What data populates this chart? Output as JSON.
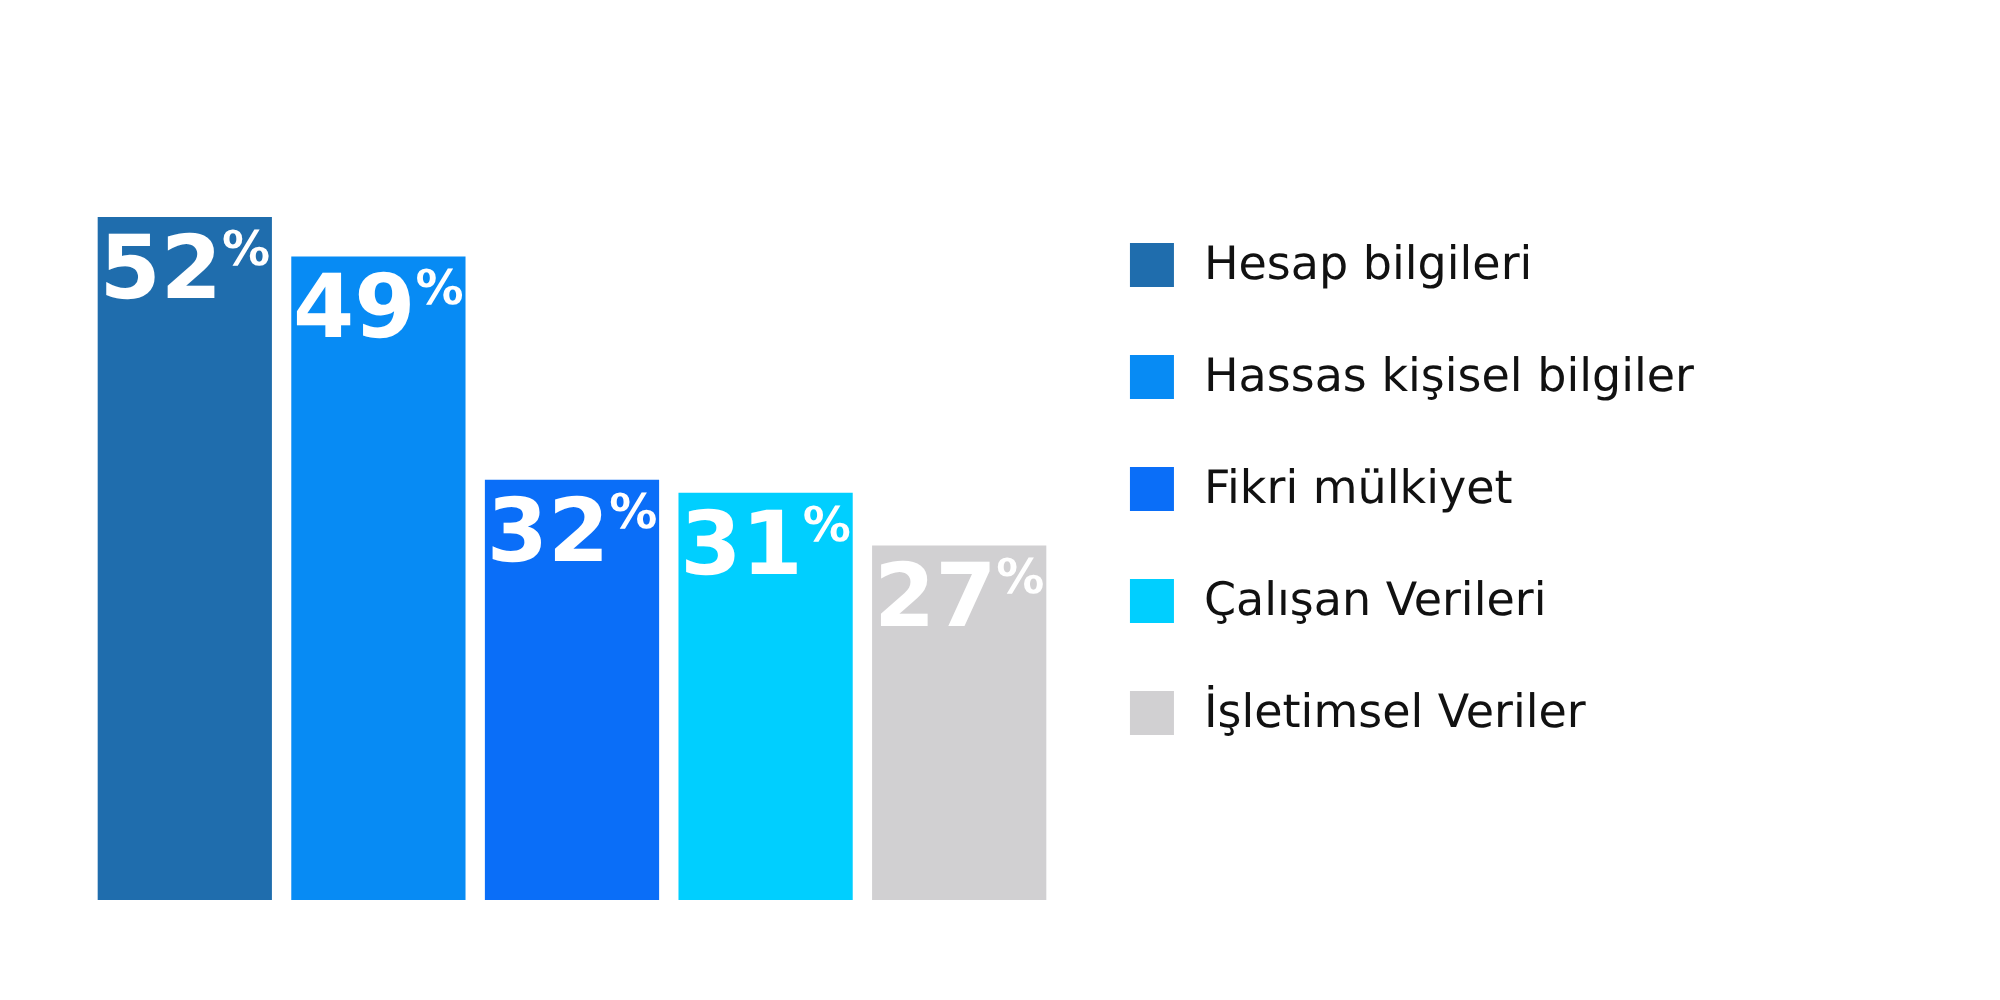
{
  "chart_data": {
    "type": "bar",
    "categories": [
      null,
      null,
      null,
      null,
      null
    ],
    "series": [
      {
        "name": "Hesap bilgileri",
        "color": "#1f6dad",
        "values": [
          52,
          null,
          null,
          null,
          null
        ],
        "value_labels": [
          "52%",
          null,
          null,
          null,
          null
        ]
      },
      {
        "name": "Hassas kişisel bilgiler",
        "color": "#078bf4",
        "values": [
          null,
          49,
          null,
          null,
          null
        ],
        "value_labels": [
          null,
          "49%",
          null,
          null,
          null
        ]
      },
      {
        "name": "Fikri mülkiyet",
        "color": "#0a6ef8",
        "values": [
          null,
          null,
          32,
          null,
          null
        ],
        "value_labels": [
          null,
          null,
          "32%",
          null,
          null
        ]
      },
      {
        "name": "Çalışan Verileri",
        "color": "#00cfff",
        "values": [
          null,
          null,
          null,
          31,
          null
        ],
        "value_labels": [
          null,
          null,
          null,
          "31%",
          null
        ]
      },
      {
        "name": "İşletimsel Veriler",
        "color": "#d1d0d2",
        "values": [
          null,
          null,
          null,
          null,
          27
        ],
        "value_labels": [
          null,
          null,
          null,
          null,
          "27%"
        ]
      }
    ],
    "stacked": true,
    "legend": "right",
    "tick_labels": false
  }
}
